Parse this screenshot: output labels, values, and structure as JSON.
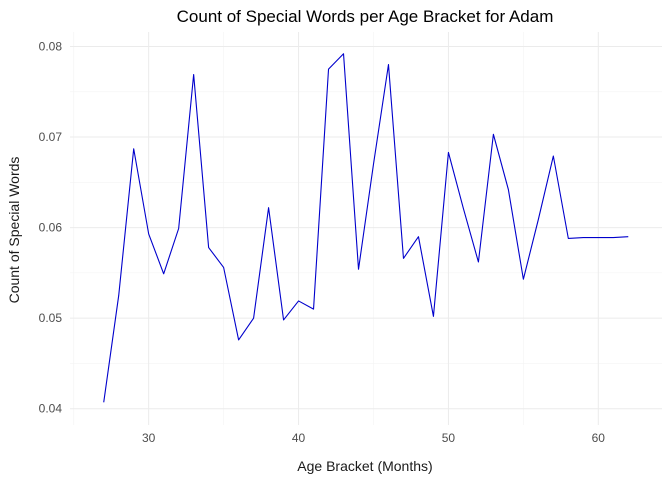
{
  "chart_data": {
    "type": "line",
    "title": "Count of Special Words per Age Bracket for Adam",
    "xlabel": "Age Bracket (Months)",
    "ylabel": "Count of Special Words",
    "xlim": [
      24.75,
      64.25
    ],
    "ylim": [
      0.0382,
      0.0816
    ],
    "xticks": [
      30,
      40,
      50,
      60
    ],
    "yticks": [
      0.04,
      0.05,
      0.06,
      0.07,
      0.08
    ],
    "ytick_labels": [
      "0.04",
      "0.05",
      "0.06",
      "0.07",
      "0.08"
    ],
    "grid": true,
    "legend": "none",
    "series": [
      {
        "color": "#0000cc",
        "x": [
          27,
          28,
          29,
          30,
          31,
          32,
          33,
          34,
          35,
          36,
          37,
          38,
          39,
          40,
          41,
          42,
          43,
          44,
          45,
          46,
          47,
          48,
          49,
          50,
          51,
          52,
          53,
          54,
          55,
          56,
          57,
          58,
          59,
          60,
          61,
          62
        ],
        "y": [
          0.0407,
          0.0525,
          0.0687,
          0.0593,
          0.0549,
          0.0599,
          0.0769,
          0.0578,
          0.0556,
          0.0476,
          0.05,
          0.0622,
          0.0498,
          0.0519,
          0.051,
          0.0775,
          0.0792,
          0.0554,
          0.067,
          0.078,
          0.0566,
          0.059,
          0.0502,
          0.0683,
          0.0621,
          0.0562,
          0.0703,
          0.0642,
          0.0543,
          0.0609,
          0.0679,
          0.0588,
          0.0589,
          0.0589,
          0.0589,
          0.059
        ]
      }
    ]
  }
}
